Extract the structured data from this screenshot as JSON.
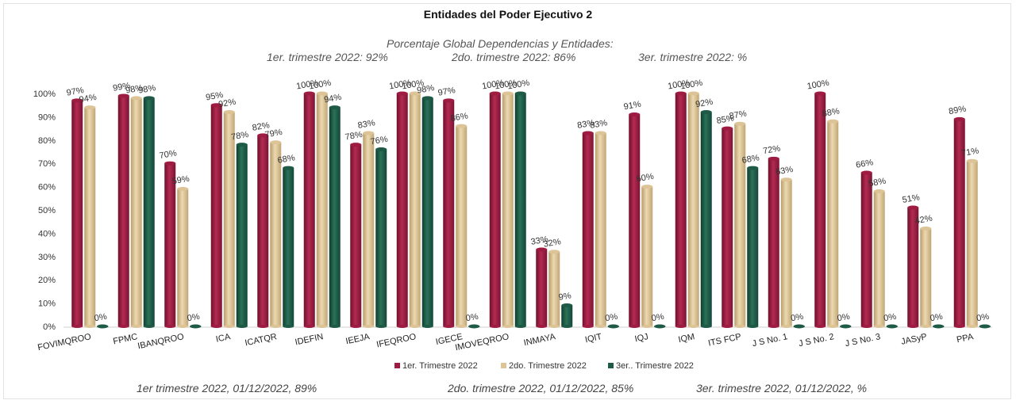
{
  "chart_data": {
    "type": "bar",
    "title": "Entidades del Poder Ejecutivo 2",
    "subtitle_lines": [
      "Porcentaje Global  Dependencias y Entidades:",
      "1er. trimestre  2022: 92%",
      "2do. trimestre 2022: 86%",
      "3er. trimestre 2022: %"
    ],
    "footer": [
      "1er trimestre  2022,  01/12/2022, 89%",
      "2do. trimestre 2022, 01/12/2022, 85%",
      "3er. trimestre 2022, 01/12/2022, %"
    ],
    "categories": [
      "FOVIMQROO",
      "FPMC",
      "IBANQROO",
      "ICA",
      "ICATQR",
      "IDEFIN",
      "IEEJA",
      "IFEQROO",
      "IGECE",
      "IMOVEQROO",
      "INMAYA",
      "IQIT",
      "IQJ",
      "IQM",
      "ITS FCP",
      "J S No. 1",
      "J S No. 2",
      "J S No. 3",
      "JASyP",
      "PPA"
    ],
    "yticks": [
      "0%",
      "10%",
      "20%",
      "30%",
      "40%",
      "50%",
      "60%",
      "70%",
      "80%",
      "90%",
      "100%"
    ],
    "ylim": [
      0,
      100
    ],
    "legend_position": "bottom",
    "series": [
      {
        "name": "1er. Trimestre 2022",
        "color": "#9e1b42",
        "values": [
          97,
          99,
          70,
          95,
          82,
          100,
          78,
          100,
          97,
          100,
          33,
          83,
          91,
          100,
          85,
          72,
          100,
          66,
          51,
          89
        ],
        "labels": [
          "97%",
          "99%",
          "70%",
          "95%",
          "82%",
          "100%",
          "78%",
          "100%",
          "97%",
          "100%",
          "33%",
          "83%",
          "91%",
          "100%",
          "85%",
          "72%",
          "100%",
          "66%",
          "51%",
          "89%"
        ]
      },
      {
        "name": "2do. Trimestre 2022",
        "color": "#dcc497",
        "values": [
          94,
          98,
          59,
          92,
          79,
          100,
          83,
          100,
          86,
          100,
          32,
          83,
          60,
          100,
          87,
          63,
          88,
          58,
          42,
          71
        ],
        "labels": [
          "94%",
          "98%",
          "59%",
          "92%",
          "79%",
          "100%",
          "83%",
          "100%",
          "86%",
          "100%",
          "32%",
          "83%",
          "60%",
          "100%",
          "87%",
          "63%",
          "88%",
          "58%",
          "42%",
          "71%"
        ]
      },
      {
        "name": "3er.. Trimestre 2022",
        "color": "#1e5a45",
        "values": [
          0,
          98,
          0,
          78,
          68,
          94,
          76,
          98,
          0,
          100,
          9,
          0,
          0,
          92,
          68,
          0,
          0,
          0,
          0,
          0
        ],
        "labels": [
          "0%",
          "98%",
          "0%",
          "78%",
          "68%",
          "94%",
          "76%",
          "98%",
          "0%",
          "100%",
          "9%",
          "0%",
          "0%",
          "92%",
          "68%",
          "0%",
          "0%",
          "0%",
          "0%",
          "0%"
        ]
      }
    ]
  }
}
